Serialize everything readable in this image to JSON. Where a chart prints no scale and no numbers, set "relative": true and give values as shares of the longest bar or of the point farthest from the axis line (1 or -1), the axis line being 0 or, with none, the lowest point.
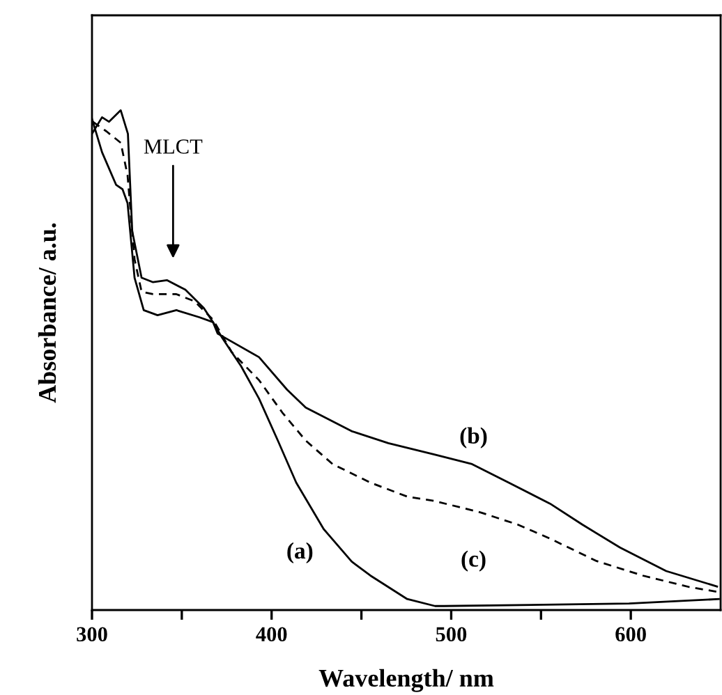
{
  "chart_data": {
    "type": "line",
    "relative": true,
    "xlabel": "Wavelength/ nm",
    "ylabel": "Absorbance/ a.u.",
    "xlim": [
      300,
      650
    ],
    "xticks": [
      300,
      {
        "value": 350,
        "label": null
      },
      400,
      {
        "value": 450,
        "label": null
      },
      500,
      {
        "value": 550,
        "label": null
      },
      600
    ],
    "tick_labels": "x",
    "grid": false,
    "marker": "none",
    "series": [
      {
        "name": "(a)",
        "color": "#000000",
        "line_style": "solid",
        "x": [
          300,
          305.6,
          313.4,
          317,
          319.8,
          323.7,
          328.8,
          336.5,
          347,
          359.7,
          367.4,
          372.6,
          383,
          393,
          403.5,
          413.7,
          429,
          444.6,
          455,
          475.5,
          491,
          496,
          599,
          649
        ],
        "values": [
          0.983,
          0.916,
          0.851,
          0.842,
          0.814,
          0.665,
          0.6,
          0.59,
          0.6,
          0.586,
          0.576,
          0.544,
          0.488,
          0.423,
          0.339,
          0.255,
          0.162,
          0.097,
          0.069,
          0.022,
          0.008,
          0.008,
          0.013,
          0.022
        ]
      },
      {
        "name": "(b)",
        "color": "#000000",
        "line_style": "solid",
        "x": [
          300,
          305.6,
          309.5,
          316,
          320,
          322.4,
          327.6,
          334,
          341.7,
          352,
          362.3,
          367.4,
          370,
          393,
          408.6,
          419,
          444.5,
          465,
          491,
          511.6,
          532,
          555,
          573,
          594,
          619.7,
          645.4,
          648
        ],
        "values": [
          0.953,
          0.986,
          0.977,
          1.0,
          0.953,
          0.758,
          0.665,
          0.656,
          0.66,
          0.641,
          0.604,
          0.576,
          0.553,
          0.506,
          0.441,
          0.405,
          0.358,
          0.334,
          0.311,
          0.292,
          0.255,
          0.213,
          0.171,
          0.125,
          0.078,
          0.05,
          0.047
        ]
      },
      {
        "name": "(c)",
        "color": "#000000",
        "line_style": "dashed",
        "x": [
          300.5,
          308,
          316,
          319.8,
          323.7,
          327.6,
          334,
          347,
          357,
          367.4,
          377.8,
          393,
          406,
          419,
          434,
          455,
          475.5,
          491,
          516.7,
          537,
          555,
          581,
          606.6,
          632.6,
          649
        ],
        "values": [
          0.977,
          0.958,
          0.935,
          0.87,
          0.702,
          0.637,
          0.632,
          0.632,
          0.618,
          0.581,
          0.516,
          0.46,
          0.395,
          0.339,
          0.292,
          0.255,
          0.227,
          0.218,
          0.195,
          0.171,
          0.143,
          0.098,
          0.069,
          0.046,
          0.036
        ]
      }
    ],
    "annotations": [
      "MLCT"
    ]
  }
}
